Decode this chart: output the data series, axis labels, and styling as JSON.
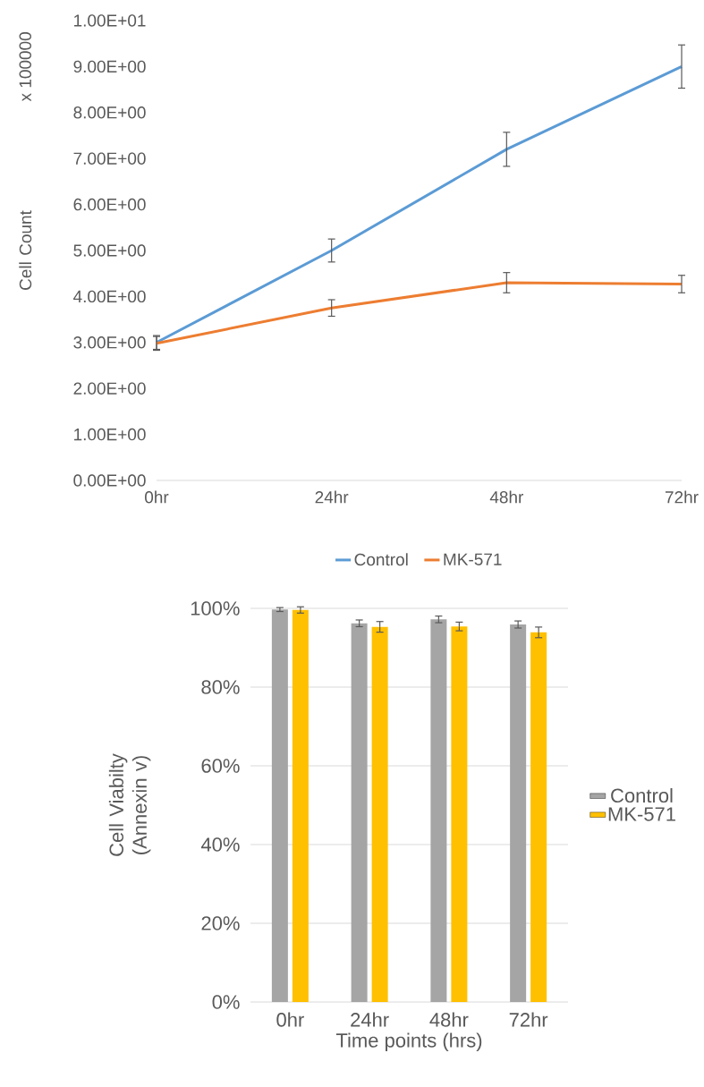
{
  "chart_data": [
    {
      "type": "line",
      "ylabel": "Cell Count",
      "annotations": [
        "x 100000"
      ],
      "categories": [
        "0hr",
        "24hr",
        "48hr",
        "72hr"
      ],
      "series": [
        {
          "name": "Control",
          "color": "#5b9bd5",
          "values": [
            3.0,
            5.0,
            7.2,
            9.0
          ],
          "errors": [
            0.15,
            0.25,
            0.37,
            0.47
          ]
        },
        {
          "name": "MK-571",
          "color": "#ed7d31",
          "values": [
            2.98,
            3.75,
            4.3,
            4.27
          ],
          "errors": [
            0.15,
            0.18,
            0.22,
            0.19
          ]
        }
      ],
      "ylim": [
        0,
        10
      ],
      "yticks": [
        {
          "value": 0,
          "label": "0.00E+00"
        },
        {
          "value": 1,
          "label": "1.00E+00"
        },
        {
          "value": 2,
          "label": "2.00E+00"
        },
        {
          "value": 3,
          "label": "3.00E+00"
        },
        {
          "value": 4,
          "label": "4.00E+00"
        },
        {
          "value": 5,
          "label": "5.00E+00"
        },
        {
          "value": 6,
          "label": "6.00E+00"
        },
        {
          "value": 7,
          "label": "7.00E+00"
        },
        {
          "value": 8,
          "label": "8.00E+00"
        },
        {
          "value": 9,
          "label": "9.00E+00"
        },
        {
          "value": 10,
          "label": "1.00E+01"
        }
      ],
      "legend": "bottom",
      "marker": "none",
      "line_style": "solid"
    },
    {
      "type": "bar",
      "xlabel": "Time points (hrs)",
      "ylabel": "Cell Viabilty (Annexin v)",
      "categories": [
        "0hr",
        "24hr",
        "48hr",
        "72hr"
      ],
      "series": [
        {
          "name": "Control",
          "color": "#a5a5a5",
          "values": [
            99.7,
            96.2,
            97.2,
            95.9
          ],
          "errors": [
            0.5,
            0.85,
            0.85,
            0.9
          ]
        },
        {
          "name": "MK-571",
          "color": "#ffc000",
          "values": [
            99.6,
            95.3,
            95.4,
            93.9
          ],
          "errors": [
            0.8,
            1.35,
            1.1,
            1.35
          ]
        }
      ],
      "ylim": [
        0,
        100
      ],
      "yticks": [
        {
          "value": 0,
          "label": "0%"
        },
        {
          "value": 20,
          "label": "20%"
        },
        {
          "value": 40,
          "label": "40%"
        },
        {
          "value": 60,
          "label": "60%"
        },
        {
          "value": 80,
          "label": "80%"
        },
        {
          "value": 100,
          "label": "100%"
        }
      ],
      "grid": "y",
      "legend": "right"
    }
  ]
}
